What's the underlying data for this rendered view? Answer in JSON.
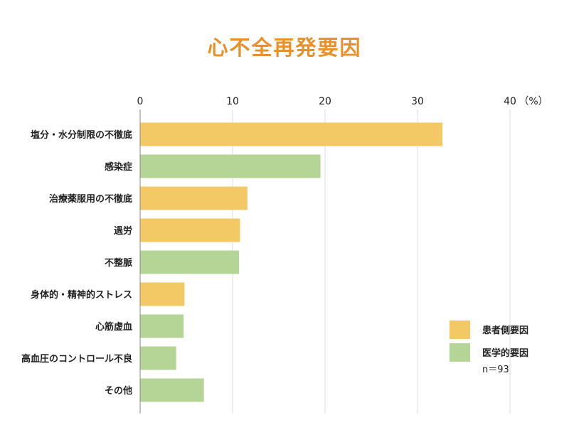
{
  "chart_data": {
    "type": "bar",
    "orientation": "horizontal",
    "title": "心不全再発要因",
    "unit_label": "（%）",
    "xlim": [
      0,
      40
    ],
    "xticks": [
      0,
      10,
      20,
      30,
      40
    ],
    "grid": true,
    "legend_position": "right",
    "categories": [
      "塩分・水分制限の不徹底",
      "感染症",
      "治療薬服用の不徹底",
      "過労",
      "不整脈",
      "身体的・精神的ストレス",
      "心筋虚血",
      "高血圧のコントロール不良",
      "その他"
    ],
    "values": [
      32.7,
      19.5,
      11.6,
      10.8,
      10.7,
      4.8,
      4.7,
      3.9,
      6.9
    ],
    "bar_group": [
      0,
      1,
      0,
      0,
      1,
      0,
      1,
      1,
      1
    ],
    "series": [
      {
        "name": "患者側要因",
        "color": "#f2c964"
      },
      {
        "name": "医学的要因",
        "color": "#b5d596"
      }
    ],
    "note": "n＝93"
  }
}
